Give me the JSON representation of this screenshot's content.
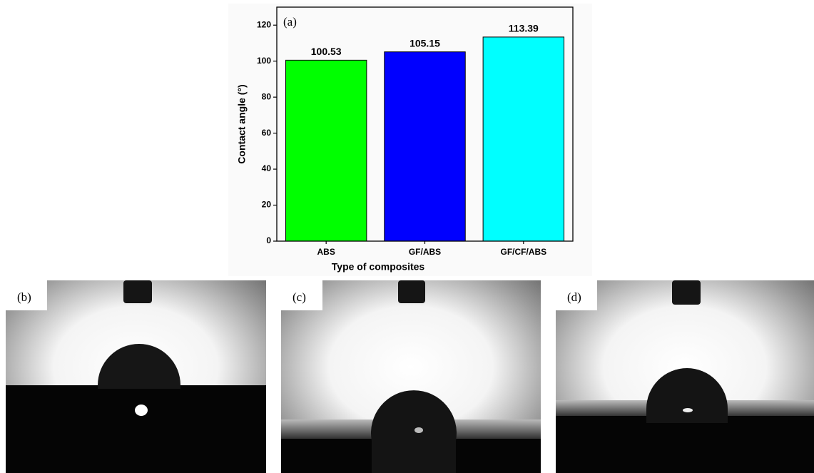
{
  "chart_data": {
    "type": "bar",
    "title": "(a)",
    "categories": [
      "ABS",
      "GF/ABS",
      "GF/CF/ABS"
    ],
    "values": [
      100.53,
      105.15,
      113.39
    ],
    "colors": [
      "#00ff00",
      "#0000ff",
      "#00ffff"
    ],
    "x_label": "Type of composites",
    "y_label": "Contact angle (°)",
    "ylim": [
      0,
      130
    ],
    "yticks": [
      0,
      20,
      40,
      60,
      80,
      100,
      120
    ],
    "grid": false
  },
  "photo_labels": [
    "(b)",
    "(c)",
    "(d)"
  ]
}
